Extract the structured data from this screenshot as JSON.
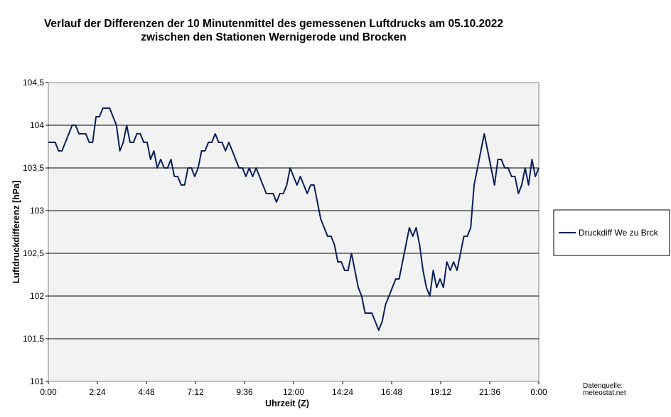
{
  "colors": {
    "series": "#0b1f5c",
    "plot_background": "#f2f2f2",
    "gridline": "#000000",
    "legend_border": "#000000"
  },
  "chart_data": {
    "type": "line",
    "title": "Verlauf der Differenzen der 10 Minutenmittel des gemessenen Luftdrucks am 05.10.2022",
    "subtitle": "zwischen den Stationen Wernigerode und Brocken",
    "xlabel": "Uhrzeit (Z)",
    "ylabel": "Luftdruckdifferenz [hPa]",
    "x_ticks": [
      "0:00",
      "2:24",
      "4:48",
      "7:12",
      "9:36",
      "12:00",
      "14:24",
      "16:48",
      "19:12",
      "21:36",
      "0:00"
    ],
    "y_ticks": [
      "101",
      "101,5",
      "102",
      "102,5",
      "103",
      "103,5",
      "104",
      "104,5"
    ],
    "ylim": [
      101,
      104.5
    ],
    "xlim_hours": [
      0,
      24
    ],
    "grid": "horizontal major gridlines",
    "legend_position": "right",
    "source_label": "Datenquelle:",
    "source_value": "meteostat.net",
    "series": [
      {
        "name": "Druckdiff We zu Brck",
        "interval_minutes": 10,
        "values": [
          103.8,
          103.8,
          103.8,
          103.7,
          103.7,
          103.8,
          103.9,
          104.0,
          104.0,
          103.9,
          103.9,
          103.9,
          103.8,
          103.8,
          104.1,
          104.1,
          104.2,
          104.2,
          104.2,
          104.1,
          104.0,
          103.7,
          103.8,
          104.0,
          103.8,
          103.8,
          103.9,
          103.9,
          103.8,
          103.8,
          103.6,
          103.7,
          103.5,
          103.6,
          103.5,
          103.5,
          103.6,
          103.4,
          103.4,
          103.3,
          103.3,
          103.5,
          103.5,
          103.4,
          103.5,
          103.7,
          103.7,
          103.8,
          103.8,
          103.9,
          103.8,
          103.8,
          103.7,
          103.8,
          103.7,
          103.6,
          103.5,
          103.5,
          103.4,
          103.5,
          103.4,
          103.5,
          103.4,
          103.3,
          103.2,
          103.2,
          103.2,
          103.1,
          103.2,
          103.2,
          103.3,
          103.5,
          103.4,
          103.3,
          103.4,
          103.3,
          103.2,
          103.3,
          103.3,
          103.1,
          102.9,
          102.8,
          102.7,
          102.7,
          102.6,
          102.4,
          102.4,
          102.3,
          102.3,
          102.5,
          102.3,
          102.1,
          102.0,
          101.8,
          101.8,
          101.8,
          101.7,
          101.6,
          101.7,
          101.9,
          102.0,
          102.1,
          102.2,
          102.2,
          102.4,
          102.6,
          102.8,
          102.7,
          102.8,
          102.6,
          102.3,
          102.1,
          102.0,
          102.3,
          102.1,
          102.2,
          102.1,
          102.4,
          102.3,
          102.4,
          102.3,
          102.5,
          102.7,
          102.7,
          102.8,
          103.3,
          103.5,
          103.7,
          103.9,
          103.7,
          103.5,
          103.3,
          103.6,
          103.6,
          103.5,
          103.5,
          103.4,
          103.4,
          103.2,
          103.3,
          103.5,
          103.3,
          103.6,
          103.4,
          103.5
        ]
      }
    ]
  }
}
